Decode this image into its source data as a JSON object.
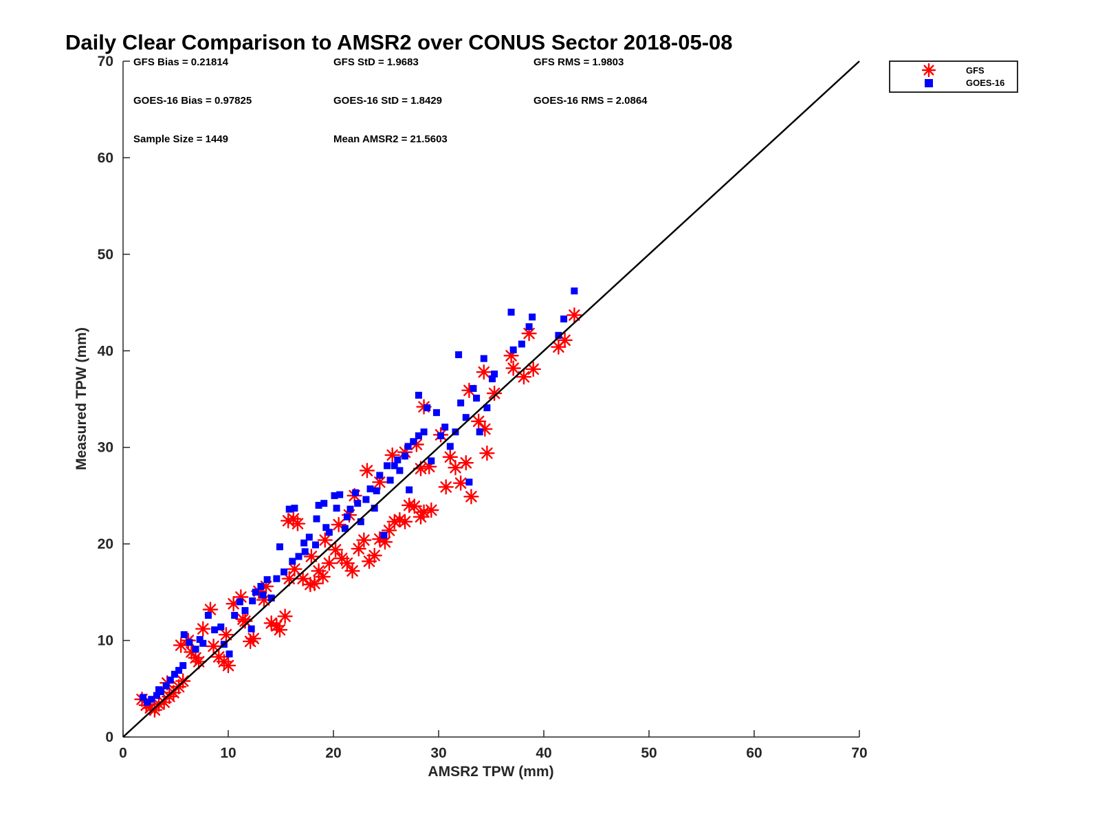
{
  "chart_data": {
    "type": "scatter",
    "title": "Daily Clear Comparison to AMSR2 over CONUS Sector 2018-05-08",
    "xlabel": "AMSR2 TPW (mm)",
    "ylabel": "Measured TPW (mm)",
    "xlim": [
      0,
      70
    ],
    "ylim": [
      0,
      70
    ],
    "x_ticks": [
      "0",
      "10",
      "20",
      "30",
      "40",
      "50",
      "60",
      "70"
    ],
    "y_ticks": [
      "0",
      "10",
      "20",
      "30",
      "40",
      "50",
      "60",
      "70"
    ],
    "grid": false,
    "legend_position": "outside top-right",
    "reference_line": {
      "from": [
        0,
        0
      ],
      "to": [
        70,
        70
      ],
      "color": "#000000"
    },
    "stats": {
      "gfs_bias": "GFS Bias = 0.21814",
      "gfs_std": "GFS StD = 1.9683",
      "gfs_rms": "GFS RMS = 1.9803",
      "goes_bias": "GOES-16 Bias = 0.97825",
      "goes_std": "GOES-16 StD = 1.8429",
      "goes_rms": "GOES-16 RMS = 2.0864",
      "sample_size": "Sample Size = 1449",
      "mean_amsr2": "Mean AMSR2 = 21.5603"
    },
    "series": [
      {
        "name": "GFS",
        "marker": "asterisk",
        "color": "#ff0000",
        "points": [
          [
            1.8,
            3.9
          ],
          [
            2.2,
            3.3
          ],
          [
            2.6,
            3.0
          ],
          [
            3.0,
            2.8
          ],
          [
            3.4,
            3.4
          ],
          [
            3.9,
            3.6
          ],
          [
            4.4,
            4.2
          ],
          [
            4.8,
            4.6
          ],
          [
            5.3,
            5.2
          ],
          [
            5.7,
            5.8
          ],
          [
            5.5,
            9.5
          ],
          [
            6.2,
            10.0
          ],
          [
            6.5,
            8.8
          ],
          [
            7.2,
            7.8
          ],
          [
            7.6,
            11.2
          ],
          [
            8.3,
            13.2
          ],
          [
            8.6,
            9.4
          ],
          [
            9.1,
            8.3
          ],
          [
            9.6,
            7.8
          ],
          [
            10.0,
            7.4
          ],
          [
            9.8,
            10.6
          ],
          [
            10.5,
            13.8
          ],
          [
            11.2,
            14.5
          ],
          [
            11.6,
            12.0
          ],
          [
            12.1,
            9.9
          ],
          [
            12.4,
            10.2
          ],
          [
            12.9,
            15.1
          ],
          [
            13.6,
            15.6
          ],
          [
            14.1,
            11.8
          ],
          [
            14.6,
            11.5
          ],
          [
            14.9,
            11.1
          ],
          [
            15.4,
            12.5
          ],
          [
            15.8,
            16.4
          ],
          [
            16.3,
            17.4
          ],
          [
            15.7,
            22.4
          ],
          [
            16.2,
            22.6
          ],
          [
            16.6,
            22.1
          ],
          [
            17.1,
            16.4
          ],
          [
            17.8,
            15.8
          ],
          [
            18.2,
            15.9
          ],
          [
            18.6,
            17.2
          ],
          [
            19.0,
            16.6
          ],
          [
            19.6,
            18.0
          ],
          [
            20.2,
            19.4
          ],
          [
            20.8,
            18.5
          ],
          [
            21.3,
            18.0
          ],
          [
            21.8,
            17.2
          ],
          [
            22.4,
            19.5
          ],
          [
            22.9,
            20.4
          ],
          [
            23.4,
            18.2
          ],
          [
            23.9,
            18.8
          ],
          [
            24.4,
            20.5
          ],
          [
            24.9,
            20.2
          ],
          [
            25.3,
            21.4
          ],
          [
            25.8,
            22.3
          ],
          [
            26.3,
            22.5
          ],
          [
            26.8,
            22.3
          ],
          [
            27.2,
            24.0
          ],
          [
            27.7,
            23.9
          ],
          [
            28.3,
            22.8
          ],
          [
            28.6,
            23.3
          ],
          [
            28.3,
            27.8
          ],
          [
            28.6,
            34.2
          ],
          [
            29.1,
            28.0
          ],
          [
            29.3,
            23.5
          ],
          [
            30.2,
            31.3
          ],
          [
            30.7,
            25.9
          ],
          [
            31.1,
            29.0
          ],
          [
            31.6,
            27.9
          ],
          [
            32.1,
            26.3
          ],
          [
            32.6,
            28.4
          ],
          [
            32.9,
            35.9
          ],
          [
            33.1,
            24.9
          ],
          [
            33.8,
            32.7
          ],
          [
            34.4,
            31.9
          ],
          [
            34.6,
            29.4
          ],
          [
            34.3,
            37.8
          ],
          [
            35.3,
            35.6
          ],
          [
            36.9,
            39.5
          ],
          [
            37.1,
            38.2
          ],
          [
            38.1,
            37.3
          ],
          [
            38.6,
            41.8
          ],
          [
            39.0,
            38.1
          ],
          [
            41.4,
            40.4
          ],
          [
            42.0,
            41.1
          ],
          [
            42.9,
            43.7
          ],
          [
            22.0,
            25.0
          ],
          [
            23.2,
            27.6
          ],
          [
            24.4,
            26.4
          ],
          [
            25.6,
            29.2
          ],
          [
            20.5,
            22.0
          ],
          [
            21.5,
            23.0
          ],
          [
            26.8,
            29.5
          ],
          [
            27.9,
            30.3
          ],
          [
            19.2,
            20.4
          ],
          [
            17.9,
            18.7
          ],
          [
            13.4,
            14.2
          ],
          [
            11.4,
            12.2
          ],
          [
            6.9,
            8.2
          ],
          [
            4.2,
            5.6
          ]
        ]
      },
      {
        "name": "GOES-16",
        "marker": "square",
        "color": "#0000ff",
        "points": [
          [
            1.9,
            4.1
          ],
          [
            2.3,
            3.6
          ],
          [
            2.7,
            3.9
          ],
          [
            3.2,
            4.3
          ],
          [
            3.6,
            4.7
          ],
          [
            4.1,
            5.3
          ],
          [
            4.5,
            5.9
          ],
          [
            4.9,
            6.5
          ],
          [
            5.3,
            6.9
          ],
          [
            5.7,
            7.4
          ],
          [
            5.8,
            10.6
          ],
          [
            6.3,
            9.8
          ],
          [
            6.9,
            9.1
          ],
          [
            7.3,
            10.1
          ],
          [
            8.1,
            12.6
          ],
          [
            8.7,
            11.1
          ],
          [
            9.6,
            9.6
          ],
          [
            10.1,
            8.6
          ],
          [
            10.6,
            12.6
          ],
          [
            11.1,
            14.0
          ],
          [
            11.6,
            13.1
          ],
          [
            12.2,
            11.2
          ],
          [
            12.6,
            15.0
          ],
          [
            13.1,
            15.6
          ],
          [
            13.7,
            16.3
          ],
          [
            14.1,
            14.4
          ],
          [
            14.6,
            16.4
          ],
          [
            14.9,
            19.7
          ],
          [
            15.3,
            17.1
          ],
          [
            15.8,
            23.6
          ],
          [
            16.3,
            23.7
          ],
          [
            16.7,
            18.7
          ],
          [
            17.2,
            20.1
          ],
          [
            17.7,
            20.7
          ],
          [
            18.4,
            22.6
          ],
          [
            18.6,
            24.0
          ],
          [
            19.1,
            24.2
          ],
          [
            19.6,
            21.2
          ],
          [
            20.1,
            25.0
          ],
          [
            20.6,
            25.1
          ],
          [
            21.1,
            21.6
          ],
          [
            21.6,
            23.6
          ],
          [
            22.1,
            25.3
          ],
          [
            22.6,
            22.3
          ],
          [
            23.1,
            24.6
          ],
          [
            23.5,
            25.7
          ],
          [
            23.9,
            23.7
          ],
          [
            24.4,
            27.1
          ],
          [
            24.8,
            20.9
          ],
          [
            25.4,
            26.6
          ],
          [
            25.8,
            28.1
          ],
          [
            26.3,
            27.6
          ],
          [
            26.8,
            29.1
          ],
          [
            27.2,
            25.6
          ],
          [
            27.6,
            30.6
          ],
          [
            28.1,
            35.4
          ],
          [
            28.6,
            31.6
          ],
          [
            28.9,
            34.1
          ],
          [
            29.3,
            28.6
          ],
          [
            29.8,
            33.6
          ],
          [
            30.2,
            31.2
          ],
          [
            30.6,
            32.1
          ],
          [
            31.1,
            30.1
          ],
          [
            31.6,
            31.6
          ],
          [
            31.9,
            39.6
          ],
          [
            32.1,
            34.6
          ],
          [
            32.6,
            33.1
          ],
          [
            32.9,
            26.4
          ],
          [
            33.3,
            36.1
          ],
          [
            33.6,
            35.1
          ],
          [
            33.9,
            31.6
          ],
          [
            34.3,
            39.2
          ],
          [
            34.6,
            34.1
          ],
          [
            35.1,
            37.1
          ],
          [
            35.3,
            37.6
          ],
          [
            36.9,
            44.0
          ],
          [
            37.1,
            40.1
          ],
          [
            37.9,
            40.7
          ],
          [
            38.6,
            42.5
          ],
          [
            38.9,
            43.5
          ],
          [
            41.4,
            41.6
          ],
          [
            41.9,
            43.3
          ],
          [
            42.9,
            46.2
          ],
          [
            22.3,
            24.2
          ],
          [
            21.3,
            22.8
          ],
          [
            20.3,
            23.7
          ],
          [
            24.1,
            25.5
          ],
          [
            25.1,
            28.1
          ],
          [
            26.1,
            28.7
          ],
          [
            27.1,
            30.1
          ],
          [
            28.1,
            31.2
          ],
          [
            19.3,
            21.7
          ],
          [
            18.3,
            19.9
          ],
          [
            17.3,
            19.2
          ],
          [
            16.1,
            18.2
          ],
          [
            13.3,
            14.7
          ],
          [
            12.3,
            14.1
          ],
          [
            9.3,
            11.4
          ],
          [
            7.6,
            9.7
          ],
          [
            3.4,
            4.9
          ]
        ]
      }
    ]
  }
}
